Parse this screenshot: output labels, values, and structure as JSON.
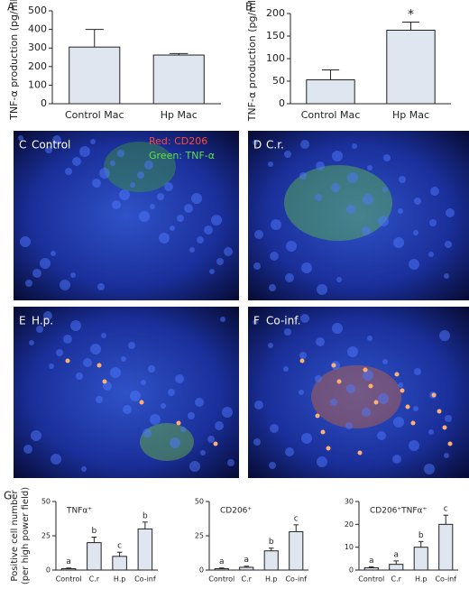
{
  "chart_data": [
    {
      "type": "bar",
      "panel": "A",
      "ylabel": "TNF-α production (pg/ml)",
      "categories": [
        "Control Mac",
        "Hp Mac"
      ],
      "values": [
        305,
        262
      ],
      "errors": [
        95,
        8
      ],
      "color": "#dfe6f0",
      "ylim": [
        0,
        500
      ],
      "yticks": [
        0,
        100,
        200,
        300,
        400,
        500
      ]
    },
    {
      "type": "bar",
      "panel": "B",
      "ylabel": "TNF-α production (pg/ml)",
      "categories": [
        "Control Mac",
        "Hp Mac"
      ],
      "values": [
        53,
        163
      ],
      "errors": [
        22,
        18
      ],
      "annotations": [
        null,
        "*"
      ],
      "color": "#dfe6f0",
      "ylim": [
        0,
        200
      ],
      "yticks": [
        0,
        50,
        100,
        150,
        200
      ]
    },
    {
      "type": "bar",
      "panel": "G",
      "ylabel": "Positive cell number",
      "ylabel2": "(per high power field)",
      "title": "TNFα⁺",
      "categories": [
        "Control",
        "C.r",
        "H.p",
        "Co-inf"
      ],
      "values": [
        1,
        20,
        10,
        30
      ],
      "errors": [
        0.5,
        4,
        3,
        5
      ],
      "letters": [
        "a",
        "b",
        "c",
        "b"
      ],
      "color": "#dfe6f0",
      "ylim": [
        0,
        50
      ],
      "yticks": [
        0,
        25,
        50
      ]
    },
    {
      "type": "bar",
      "title": "CD206⁺",
      "categories": [
        "Control",
        "C.r",
        "H.p",
        "Co-inf"
      ],
      "values": [
        1,
        2,
        14,
        28
      ],
      "errors": [
        0.5,
        0.8,
        2,
        5
      ],
      "letters": [
        "a",
        "a",
        "b",
        "c"
      ],
      "color": "#dfe6f0",
      "ylim": [
        0,
        50
      ],
      "yticks": [
        0,
        25,
        50
      ]
    },
    {
      "type": "bar",
      "title": "CD206⁺TNFα⁺",
      "categories": [
        "Control",
        "C.r",
        "H.p",
        "Co-inf"
      ],
      "values": [
        1,
        2.5,
        10,
        20
      ],
      "errors": [
        0.4,
        1.5,
        2.5,
        4
      ],
      "letters": [
        "a",
        "a",
        "b",
        "c"
      ],
      "color": "#dfe6f0",
      "ylim": [
        0,
        30
      ],
      "yticks": [
        0,
        10,
        20,
        30
      ]
    }
  ],
  "image_panels": [
    {
      "label": "C",
      "title": "Control",
      "legend_red": "Red: CD206",
      "legend_green": "Green: TNF-α"
    },
    {
      "label": "D",
      "title": "C.r."
    },
    {
      "label": "E",
      "title": "H.p."
    },
    {
      "label": "F",
      "title": "Co-inf."
    }
  ]
}
